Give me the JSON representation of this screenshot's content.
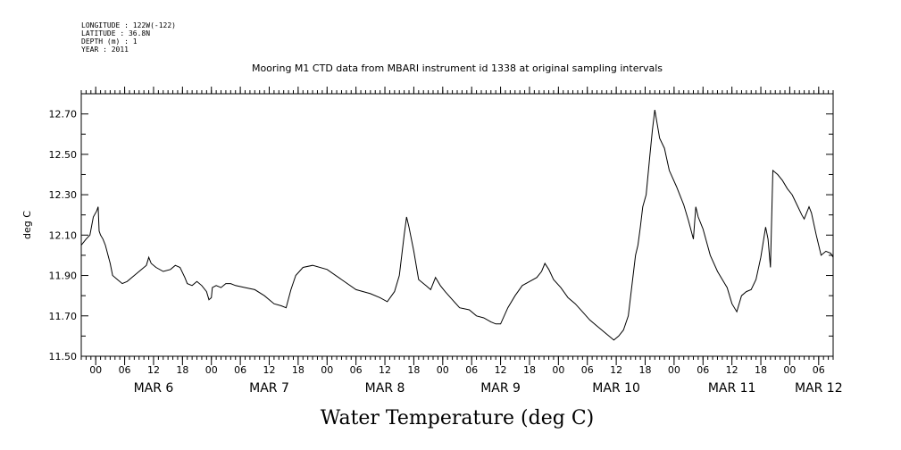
{
  "header": {
    "meta_lines": [
      "LONGITUDE : 122W(-122)",
      "LATITUDE : 36.8N",
      "DEPTH (m) : 1",
      "YEAR : 2011"
    ]
  },
  "chart_data": {
    "type": "line",
    "title": "Mooring M1 CTD data from MBARI instrument id 1338 at original sampling intervals",
    "xlabel": "Water Temperature (deg C)",
    "ylabel": "deg C",
    "x_unit": "hours since 2011-03-06 00:00",
    "xlim": [
      -3,
      153
    ],
    "ylim": [
      11.5,
      12.8
    ],
    "yticks": [
      11.5,
      11.7,
      11.9,
      12.1,
      12.3,
      12.5,
      12.7
    ],
    "ytick_labels": [
      "11.50",
      "11.70",
      "11.90",
      "12.10",
      "12.30",
      "12.50",
      "12.70"
    ],
    "xtick_hours": [
      0,
      6,
      12,
      18,
      24,
      30,
      36,
      42,
      48,
      54,
      60,
      66,
      72,
      78,
      84,
      90,
      96,
      102,
      108,
      114,
      120,
      126,
      132,
      138,
      144,
      150
    ],
    "xtick_labels": [
      "00",
      "06",
      "12",
      "18",
      "00",
      "06",
      "12",
      "18",
      "00",
      "06",
      "12",
      "18",
      "00",
      "06",
      "12",
      "18",
      "00",
      "06",
      "12",
      "18",
      "00",
      "06",
      "12",
      "18",
      "00",
      "06"
    ],
    "date_labels": [
      {
        "hour": 12,
        "text": "MAR   6"
      },
      {
        "hour": 36,
        "text": "MAR   7"
      },
      {
        "hour": 60,
        "text": "MAR   8"
      },
      {
        "hour": 84,
        "text": "MAR   9"
      },
      {
        "hour": 108,
        "text": "MAR 10"
      },
      {
        "hour": 132,
        "text": "MAR 11"
      },
      {
        "hour": 150,
        "text": "MAR 12"
      }
    ],
    "series": [
      {
        "name": "",
        "color": "#000000",
        "points": [
          [
            -3,
            12.05
          ],
          [
            -2,
            12.08
          ],
          [
            -1.2,
            12.1
          ],
          [
            -0.5,
            12.19
          ],
          [
            0.2,
            12.22
          ],
          [
            0.5,
            12.24
          ],
          [
            0.7,
            12.12
          ],
          [
            1,
            12.1
          ],
          [
            1.5,
            12.08
          ],
          [
            2,
            12.05
          ],
          [
            3,
            11.96
          ],
          [
            3.5,
            11.9
          ],
          [
            4.5,
            11.88
          ],
          [
            5.5,
            11.86
          ],
          [
            6.5,
            11.87
          ],
          [
            8,
            11.9
          ],
          [
            9.5,
            11.93
          ],
          [
            10.5,
            11.95
          ],
          [
            11,
            11.99
          ],
          [
            11.5,
            11.96
          ],
          [
            12.5,
            11.94
          ],
          [
            14,
            11.92
          ],
          [
            15.5,
            11.93
          ],
          [
            16.5,
            11.95
          ],
          [
            17.5,
            11.94
          ],
          [
            18.5,
            11.89
          ],
          [
            19,
            11.86
          ],
          [
            20,
            11.85
          ],
          [
            21,
            11.87
          ],
          [
            22,
            11.85
          ],
          [
            23,
            11.82
          ],
          [
            23.5,
            11.78
          ],
          [
            24,
            11.79
          ],
          [
            24.2,
            11.84
          ],
          [
            25,
            11.85
          ],
          [
            26,
            11.84
          ],
          [
            27,
            11.86
          ],
          [
            28,
            11.86
          ],
          [
            29,
            11.85
          ],
          [
            31,
            11.84
          ],
          [
            33,
            11.83
          ],
          [
            35,
            11.8
          ],
          [
            37,
            11.76
          ],
          [
            38.5,
            11.75
          ],
          [
            39.5,
            11.74
          ],
          [
            40.5,
            11.83
          ],
          [
            41.5,
            11.9
          ],
          [
            43,
            11.94
          ],
          [
            45,
            11.95
          ],
          [
            48,
            11.93
          ],
          [
            51,
            11.88
          ],
          [
            54,
            11.83
          ],
          [
            57,
            11.81
          ],
          [
            59,
            11.79
          ],
          [
            60.5,
            11.77
          ],
          [
            62,
            11.82
          ],
          [
            63,
            11.9
          ],
          [
            64,
            12.1
          ],
          [
            64.5,
            12.19
          ],
          [
            65,
            12.14
          ],
          [
            66,
            12.02
          ],
          [
            67,
            11.88
          ],
          [
            68.5,
            11.85
          ],
          [
            69.5,
            11.83
          ],
          [
            70.5,
            11.89
          ],
          [
            71.5,
            11.85
          ],
          [
            72.5,
            11.82
          ],
          [
            74,
            11.78
          ],
          [
            75.5,
            11.74
          ],
          [
            77.5,
            11.73
          ],
          [
            79,
            11.7
          ],
          [
            80.5,
            11.69
          ],
          [
            82,
            11.67
          ],
          [
            83,
            11.66
          ],
          [
            84,
            11.66
          ],
          [
            85.5,
            11.74
          ],
          [
            87,
            11.8
          ],
          [
            88.5,
            11.85
          ],
          [
            90,
            11.87
          ],
          [
            91.5,
            11.89
          ],
          [
            92.5,
            11.92
          ],
          [
            93.2,
            11.96
          ],
          [
            94,
            11.93
          ],
          [
            95,
            11.88
          ],
          [
            96.5,
            11.84
          ],
          [
            98,
            11.79
          ],
          [
            99.5,
            11.76
          ],
          [
            101,
            11.72
          ],
          [
            102.5,
            11.68
          ],
          [
            104,
            11.65
          ],
          [
            105.5,
            11.62
          ],
          [
            106.5,
            11.6
          ],
          [
            107.5,
            11.58
          ],
          [
            108.5,
            11.6
          ],
          [
            109.5,
            11.63
          ],
          [
            110.5,
            11.7
          ],
          [
            111,
            11.8
          ],
          [
            112,
            12.0
          ],
          [
            112.5,
            12.05
          ],
          [
            113,
            12.14
          ],
          [
            113.5,
            12.24
          ],
          [
            114.2,
            12.3
          ],
          [
            115,
            12.5
          ],
          [
            115.5,
            12.62
          ],
          [
            116,
            12.72
          ],
          [
            116.5,
            12.65
          ],
          [
            117,
            12.58
          ],
          [
            118,
            12.53
          ],
          [
            119,
            12.42
          ],
          [
            120.5,
            12.34
          ],
          [
            122,
            12.25
          ],
          [
            123,
            12.17
          ],
          [
            124,
            12.08
          ],
          [
            124.5,
            12.24
          ],
          [
            125,
            12.19
          ],
          [
            126,
            12.13
          ],
          [
            127.5,
            12.0
          ],
          [
            129,
            11.92
          ],
          [
            130,
            11.88
          ],
          [
            131,
            11.84
          ],
          [
            132,
            11.76
          ],
          [
            133,
            11.72
          ],
          [
            134,
            11.8
          ],
          [
            135,
            11.82
          ],
          [
            136,
            11.83
          ],
          [
            137,
            11.88
          ],
          [
            138,
            11.99
          ],
          [
            139,
            12.14
          ],
          [
            139.5,
            12.08
          ],
          [
            140,
            11.94
          ],
          [
            140.5,
            12.42
          ],
          [
            141.5,
            12.4
          ],
          [
            142.5,
            12.37
          ],
          [
            143.5,
            12.33
          ],
          [
            144.5,
            12.3
          ],
          [
            145.5,
            12.25
          ],
          [
            146.5,
            12.2
          ],
          [
            147,
            12.18
          ],
          [
            148,
            12.24
          ],
          [
            148.5,
            12.21
          ],
          [
            149.5,
            12.1
          ],
          [
            150.5,
            12.0
          ],
          [
            151.5,
            12.02
          ],
          [
            152.5,
            12.01
          ],
          [
            153,
            11.99
          ]
        ]
      }
    ]
  }
}
